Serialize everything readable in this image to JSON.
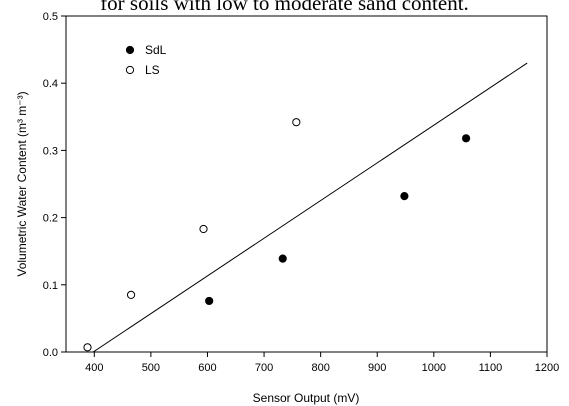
{
  "caption": "for soils with low to moderate sand content.",
  "chart_data": {
    "type": "scatter",
    "xlabel": "Sensor Output (mV)",
    "ylabel": "Volumetric Water Content (m³ m⁻³)",
    "xlim": [
      350,
      1200
    ],
    "ylim": [
      0.0,
      0.5
    ],
    "xticks": [
      400,
      500,
      600,
      700,
      800,
      900,
      1000,
      1100,
      1200
    ],
    "yticks": [
      0.0,
      0.1,
      0.2,
      0.3,
      0.4,
      0.5
    ],
    "grid": false,
    "legend_position": "top-left",
    "series": [
      {
        "name": "SdL",
        "marker": "filled-circle",
        "color": "#000000",
        "points": [
          [
            603,
            0.076
          ],
          [
            733,
            0.139
          ],
          [
            948,
            0.232
          ],
          [
            1057,
            0.318
          ]
        ]
      },
      {
        "name": "LS",
        "marker": "open-circle",
        "color": "#000000",
        "points": [
          [
            388,
            0.007
          ],
          [
            465,
            0.085
          ],
          [
            593,
            0.183
          ],
          [
            757,
            0.342
          ]
        ]
      }
    ],
    "fit_line": {
      "from": [
        398,
        0.0
      ],
      "to": [
        1165,
        0.43
      ]
    }
  }
}
